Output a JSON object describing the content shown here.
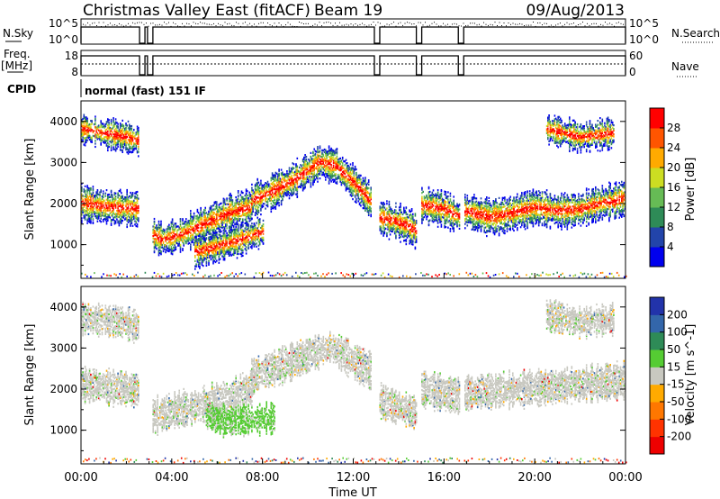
{
  "header": {
    "title": "Christmas Valley East (fitACF)",
    "beam": "Beam 19",
    "date": "09/Aug/2013"
  },
  "strip": {
    "left_labels": {
      "nsky": "N.Sky",
      "freq": "Freq.",
      "mhz": "[MHz]",
      "cpid": "CPID"
    },
    "right_labels": {
      "nsearch": "N.Search",
      "nave": "Nave"
    },
    "nsky_ticks": [
      "10^5",
      "10^0"
    ],
    "nsearch_ticks": [
      "10^5",
      "10^0"
    ],
    "freq_ticks": [
      "18",
      "8"
    ],
    "nave_ticks": [
      "60",
      "0"
    ],
    "cpid_text": "normal (fast) 151 IF"
  },
  "colorbars": {
    "power": {
      "title": "Power [dB]",
      "ticks": [
        "4",
        "8",
        "12",
        "16",
        "20",
        "24",
        "28"
      ],
      "colors": [
        "#0000ee",
        "#2244aa",
        "#2e8b57",
        "#66bb55",
        "#ccdd22",
        "#ffaa00",
        "#ff5500",
        "#ff0000"
      ]
    },
    "velocity": {
      "title": "Velocity [m s^-1]",
      "ticks": [
        "200",
        "100",
        "50",
        "15",
        "-15",
        "-50",
        "-100",
        "-200"
      ],
      "colors": [
        "#2233aa",
        "#3366aa",
        "#2e8b57",
        "#55cc33",
        "#c8c8c0",
        "#ffaa00",
        "#ff7700",
        "#ff3300",
        "#ee0000"
      ]
    }
  },
  "chart_data": [
    {
      "type": "heatmap",
      "panel": "power",
      "ylabel": "Slant Range [km]",
      "xlabel": "",
      "ylim": [
        180,
        4500
      ],
      "yticks": [
        "1000",
        "2000",
        "3000",
        "4000"
      ],
      "xlim": [
        0,
        24
      ],
      "color_label": "Power [dB]",
      "bands": [
        {
          "t": [
            0,
            0.6,
            1.2,
            1.8,
            2.5
          ],
          "range": [
            2000,
            1950,
            1900,
            1880,
            1850
          ]
        },
        {
          "t": [
            3.0,
            3.6,
            4.5,
            5.5,
            6.5,
            7.5
          ],
          "range": [
            1250,
            1100,
            1250,
            1500,
            1750,
            1900
          ]
        },
        {
          "t": [
            7.5,
            8.5,
            9.5,
            10.5,
            11.2,
            12.0,
            12.8
          ],
          "range": [
            2050,
            2300,
            2600,
            3000,
            2900,
            2500,
            2000
          ]
        },
        {
          "t": [
            13.1,
            13.8,
            14.4,
            14.8
          ],
          "range": [
            1650,
            1550,
            1450,
            1300
          ]
        },
        {
          "t": [
            15.0,
            16.0,
            16.7
          ],
          "range": [
            1950,
            1850,
            1650
          ]
        },
        {
          "t": [
            16.9,
            18.0,
            19.0,
            20.0,
            21.0,
            22.0,
            23.0,
            24.0
          ],
          "range": [
            1800,
            1650,
            1750,
            1900,
            1800,
            1850,
            2000,
            2100
          ]
        },
        {
          "t": [
            0,
            1.0,
            2.0,
            2.5
          ],
          "range": [
            3800,
            3700,
            3600,
            3500
          ]
        },
        {
          "t": [
            5.0,
            6.0,
            7.0,
            8.0
          ],
          "range": [
            800,
            950,
            1100,
            1300
          ]
        },
        {
          "t": [
            20.5,
            22.0,
            23.5
          ],
          "range": [
            3800,
            3600,
            3700
          ]
        }
      ],
      "gaps": [
        2.7,
        3.05,
        13.05,
        14.9,
        16.75
      ]
    },
    {
      "type": "heatmap",
      "panel": "velocity",
      "ylabel": "Slant Range [km]",
      "xlabel": "Time UT",
      "ylim": [
        180,
        4500
      ],
      "yticks": [
        "1000",
        "2000",
        "3000",
        "4000"
      ],
      "xlim": [
        0,
        24
      ],
      "xticks": [
        "00:00",
        "04:00",
        "08:00",
        "12:00",
        "16:00",
        "20:00",
        "00:00"
      ],
      "color_label": "Velocity [m s^-1]",
      "bands": [
        {
          "t": [
            0,
            1.0,
            2.0,
            2.5
          ],
          "range": [
            2100,
            2050,
            2000,
            1950
          ]
        },
        {
          "t": [
            3.0,
            4.5,
            6.0,
            7.5
          ],
          "range": [
            1300,
            1500,
            1700,
            2000
          ]
        },
        {
          "t": [
            7.5,
            9.5,
            11.0,
            12.8
          ],
          "range": [
            2300,
            2700,
            3000,
            2400
          ]
        },
        {
          "t": [
            13.1,
            14.8
          ],
          "range": [
            1700,
            1400
          ]
        },
        {
          "t": [
            15.0,
            16.7
          ],
          "range": [
            2000,
            1800
          ]
        },
        {
          "t": [
            16.9,
            20.0,
            24.0
          ],
          "range": [
            1900,
            2000,
            2200
          ]
        },
        {
          "t": [
            5.5,
            6.5,
            7.5,
            8.5
          ],
          "range": [
            1300,
            1200,
            1250,
            1300
          ]
        },
        {
          "t": [
            0,
            1.5,
            2.5
          ],
          "range": [
            3700,
            3650,
            3500
          ]
        },
        {
          "t": [
            20.5,
            22.0,
            23.5
          ],
          "range": [
            3800,
            3600,
            3700
          ]
        }
      ],
      "gaps": [
        2.7,
        3.05,
        13.05,
        14.9,
        16.75
      ]
    }
  ]
}
